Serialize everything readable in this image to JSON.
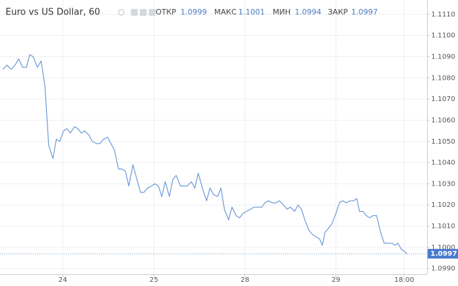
{
  "chart_data": {
    "type": "line",
    "title": "Euro vs US Dollar, 60",
    "ohlc": [
      {
        "label": "ОТКР",
        "value": "1.0999"
      },
      {
        "label": "МАКС",
        "value": "1.1001"
      },
      {
        "label": "МИН",
        "value": "1.0994"
      },
      {
        "label": "ЗАКР",
        "value": "1.0997"
      }
    ],
    "color": "#6b9ad8",
    "grid": true,
    "xlim": [
      0,
      112
    ],
    "xticks": [
      {
        "value": 16,
        "label": "24"
      },
      {
        "value": 40,
        "label": "25"
      },
      {
        "value": 64,
        "label": "28"
      },
      {
        "value": 88,
        "label": "29"
      },
      {
        "value": 106,
        "label": "18:00"
      }
    ],
    "ylim": [
      1.09873,
      1.11145
    ],
    "yticks": [
      {
        "value": 1.099,
        "label": "1.0990"
      },
      {
        "value": 1.1,
        "label": "1.1000"
      },
      {
        "value": 1.101,
        "label": "1.1010"
      },
      {
        "value": 1.102,
        "label": "1.1020"
      },
      {
        "value": 1.103,
        "label": "1.1030"
      },
      {
        "value": 1.104,
        "label": "1.1040"
      },
      {
        "value": 1.105,
        "label": "1.1050"
      },
      {
        "value": 1.106,
        "label": "1.1060"
      },
      {
        "value": 1.107,
        "label": "1.1070"
      },
      {
        "value": 1.108,
        "label": "1.1080"
      },
      {
        "value": 1.109,
        "label": "1.1090"
      },
      {
        "value": 1.11,
        "label": "1.1100"
      },
      {
        "value": 1.111,
        "label": "1.1110"
      }
    ],
    "last_price": 1.0997,
    "x": [
      0.2,
      1.3,
      2.4,
      3.4,
      4.4,
      5.4,
      6.4,
      7.3,
      8.2,
      9.3,
      10.3,
      11.3,
      12.3,
      13.4,
      14.3,
      15.2,
      16.2,
      17.1,
      18.0,
      19.1,
      20.0,
      20.9,
      21.8,
      22.9,
      23.8,
      24.9,
      25.8,
      26.7,
      27.8,
      28.7,
      29.6,
      30.7,
      31.6,
      32.5,
      33.4,
      34.5,
      35.4,
      36.5,
      37.4,
      38.3,
      39.4,
      40.3,
      41.2,
      42.1,
      43.0,
      44.1,
      45.0,
      45.9,
      47.0,
      47.9,
      48.8,
      49.9,
      50.8,
      51.7,
      52.8,
      53.9,
      54.8,
      55.7,
      56.8,
      57.7,
      58.6,
      59.7,
      60.6,
      61.7,
      62.6,
      63.5,
      64.4,
      65.5,
      66.4,
      67.3,
      68.4,
      69.3,
      70.2,
      71.3,
      72.2,
      73.1,
      74.2,
      75.1,
      76.0,
      77.1,
      78.0,
      78.9,
      80.0,
      80.9,
      81.9,
      82.8,
      83.7,
      84.4,
      85.1,
      86.0,
      86.9,
      88.0,
      88.9,
      89.8,
      90.7,
      91.7,
      92.6,
      93.5,
      94.2,
      95.1,
      96.0,
      96.9,
      97.8,
      98.7,
      99.8,
      100.7,
      101.8,
      102.7,
      103.6,
      104.3,
      105.3,
      106.2,
      106.7
    ],
    "values": [
      1.1084,
      1.1086,
      1.1084,
      1.1086,
      1.1089,
      1.1085,
      1.1085,
      1.1091,
      1.109,
      1.1085,
      1.1088,
      1.1076,
      1.1048,
      1.1042,
      1.1051,
      1.105,
      1.1055,
      1.1056,
      1.1054,
      1.1057,
      1.1056,
      1.1054,
      1.1055,
      1.1053,
      1.105,
      1.1049,
      1.1049,
      1.1051,
      1.1052,
      1.1049,
      1.1046,
      1.1037,
      1.1037,
      1.1036,
      1.1029,
      1.1039,
      1.1033,
      1.1026,
      1.1026,
      1.1028,
      1.1029,
      1.103,
      1.1029,
      1.1024,
      1.1031,
      1.1024,
      1.1032,
      1.1034,
      1.1029,
      1.1029,
      1.1029,
      1.1031,
      1.1028,
      1.1035,
      1.1028,
      1.1022,
      1.1028,
      1.1025,
      1.1024,
      1.1028,
      1.1018,
      1.1013,
      1.1019,
      1.1015,
      1.1014,
      1.1016,
      1.1017,
      1.1018,
      1.1019,
      1.1019,
      1.1019,
      1.1021,
      1.1022,
      1.1021,
      1.1021,
      1.1022,
      1.102,
      1.1018,
      1.1019,
      1.1017,
      1.102,
      1.1018,
      1.1012,
      1.1008,
      1.1006,
      1.1005,
      1.1004,
      1.1001,
      1.1007,
      1.1009,
      1.1011,
      1.1016,
      1.1021,
      1.1022,
      1.1021,
      1.1022,
      1.1022,
      1.1023,
      1.1017,
      1.1017,
      1.1015,
      1.1014,
      1.1015,
      1.1015,
      1.1007,
      1.1002,
      1.1002,
      1.1002,
      1.1001,
      1.1002,
      1.0999,
      1.0998,
      1.0997
    ]
  }
}
